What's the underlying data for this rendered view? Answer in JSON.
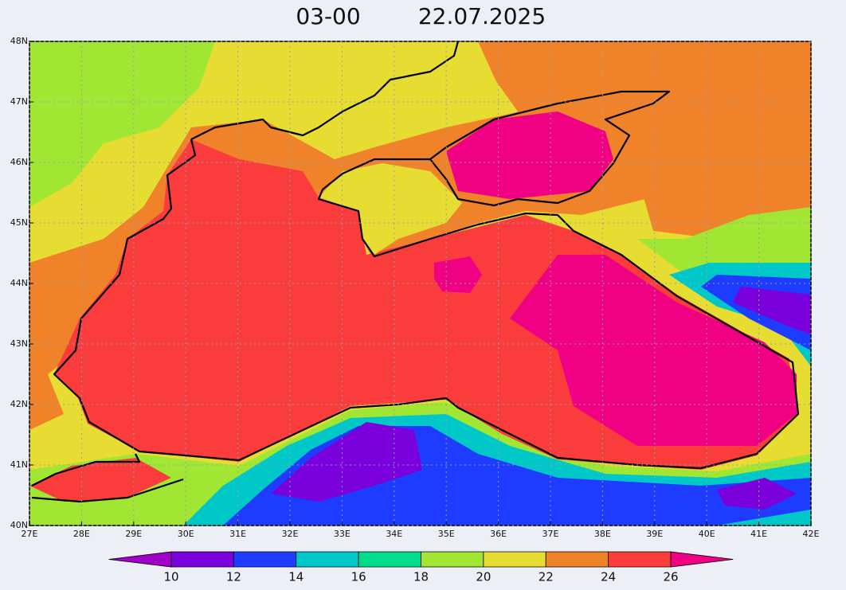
{
  "title": {
    "time": "03-00",
    "date": "22.07.2025"
  },
  "map": {
    "xlim": [
      27,
      42
    ],
    "ylim": [
      40,
      48
    ],
    "xticks": [
      {
        "value": 27,
        "label": "27E"
      },
      {
        "value": 28,
        "label": "28E"
      },
      {
        "value": 29,
        "label": "29E"
      },
      {
        "value": 30,
        "label": "30E"
      },
      {
        "value": 31,
        "label": "31E"
      },
      {
        "value": 32,
        "label": "32E"
      },
      {
        "value": 33,
        "label": "33E"
      },
      {
        "value": 34,
        "label": "34E"
      },
      {
        "value": 35,
        "label": "35E"
      },
      {
        "value": 36,
        "label": "36E"
      },
      {
        "value": 37,
        "label": "37E"
      },
      {
        "value": 38,
        "label": "38E"
      },
      {
        "value": 39,
        "label": "39E"
      },
      {
        "value": 40,
        "label": "40E"
      },
      {
        "value": 41,
        "label": "41E"
      },
      {
        "value": 42,
        "label": "42E"
      }
    ],
    "yticks": [
      {
        "value": 40,
        "label": "40N"
      },
      {
        "value": 41,
        "label": "41N"
      },
      {
        "value": 42,
        "label": "42N"
      },
      {
        "value": 43,
        "label": "43N"
      },
      {
        "value": 44,
        "label": "44N"
      },
      {
        "value": 45,
        "label": "45N"
      },
      {
        "value": 46,
        "label": "46N"
      },
      {
        "value": 47,
        "label": "47N"
      },
      {
        "value": 48,
        "label": "48N"
      }
    ]
  },
  "colorbar": {
    "levels": [
      10,
      12,
      14,
      16,
      18,
      20,
      22,
      24,
      26
    ],
    "colors": [
      "#a000c8",
      "#7a00dc",
      "#1e3cff",
      "#00c8c8",
      "#00dc8c",
      "#a0e632",
      "#e6dc32",
      "#f0822a",
      "#fa3c3c",
      "#f00082"
    ]
  }
}
